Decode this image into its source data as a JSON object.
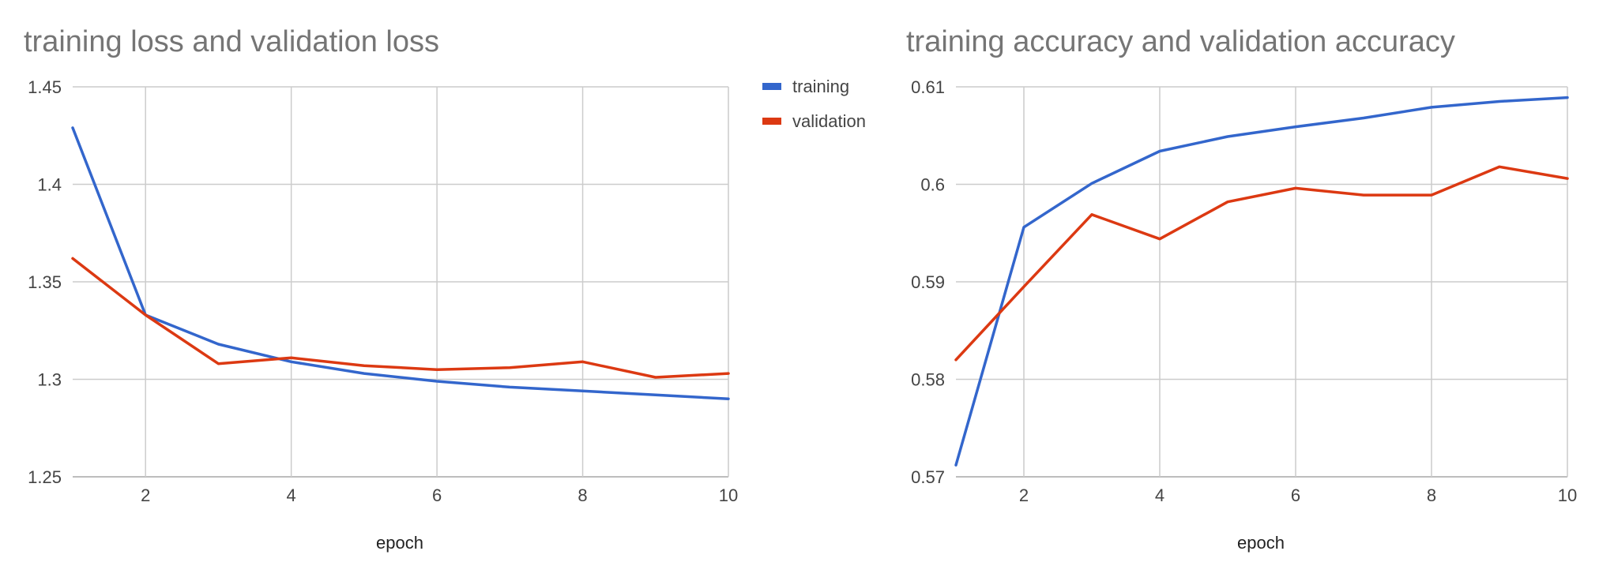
{
  "colors": {
    "training": "#3366cc",
    "validation": "#dc3912"
  },
  "chart_data": [
    {
      "type": "line",
      "title": "training loss and validation loss",
      "xlabel": "epoch",
      "ylabel": "",
      "x": [
        1,
        2,
        3,
        4,
        5,
        6,
        7,
        8,
        9,
        10
      ],
      "xlim": [
        1,
        10
      ],
      "ylim": [
        1.25,
        1.45
      ],
      "xticks": [
        "2",
        "4",
        "6",
        "8",
        "10"
      ],
      "yticks": [
        "1.45",
        "1.4",
        "1.35",
        "1.3",
        "1.25"
      ],
      "grid": true,
      "legend": "right",
      "series": [
        {
          "name": "training",
          "values": [
            1.429,
            1.333,
            1.318,
            1.309,
            1.303,
            1.299,
            1.296,
            1.294,
            1.292,
            1.29
          ]
        },
        {
          "name": "validation",
          "values": [
            1.362,
            1.333,
            1.308,
            1.311,
            1.307,
            1.305,
            1.306,
            1.309,
            1.301,
            1.303
          ]
        }
      ]
    },
    {
      "type": "line",
      "title": "training accuracy and validation accuracy",
      "xlabel": "epoch",
      "ylabel": "",
      "x": [
        1,
        2,
        3,
        4,
        5,
        6,
        7,
        8,
        9,
        10
      ],
      "xlim": [
        1,
        10
      ],
      "ylim": [
        0.57,
        0.61
      ],
      "xticks": [
        "2",
        "4",
        "6",
        "8",
        "10"
      ],
      "yticks": [
        "0.61",
        "0.6",
        "0.59",
        "0.58",
        "0.57"
      ],
      "grid": true,
      "legend": "none",
      "series": [
        {
          "name": "training",
          "values": [
            0.5712,
            0.5956,
            0.6001,
            0.6034,
            0.6049,
            0.6059,
            0.6068,
            0.6079,
            0.6085,
            0.6089
          ]
        },
        {
          "name": "validation",
          "values": [
            0.582,
            0.5895,
            0.5969,
            0.5944,
            0.5982,
            0.5996,
            0.5989,
            0.5989,
            0.6018,
            0.6006
          ]
        }
      ]
    }
  ]
}
